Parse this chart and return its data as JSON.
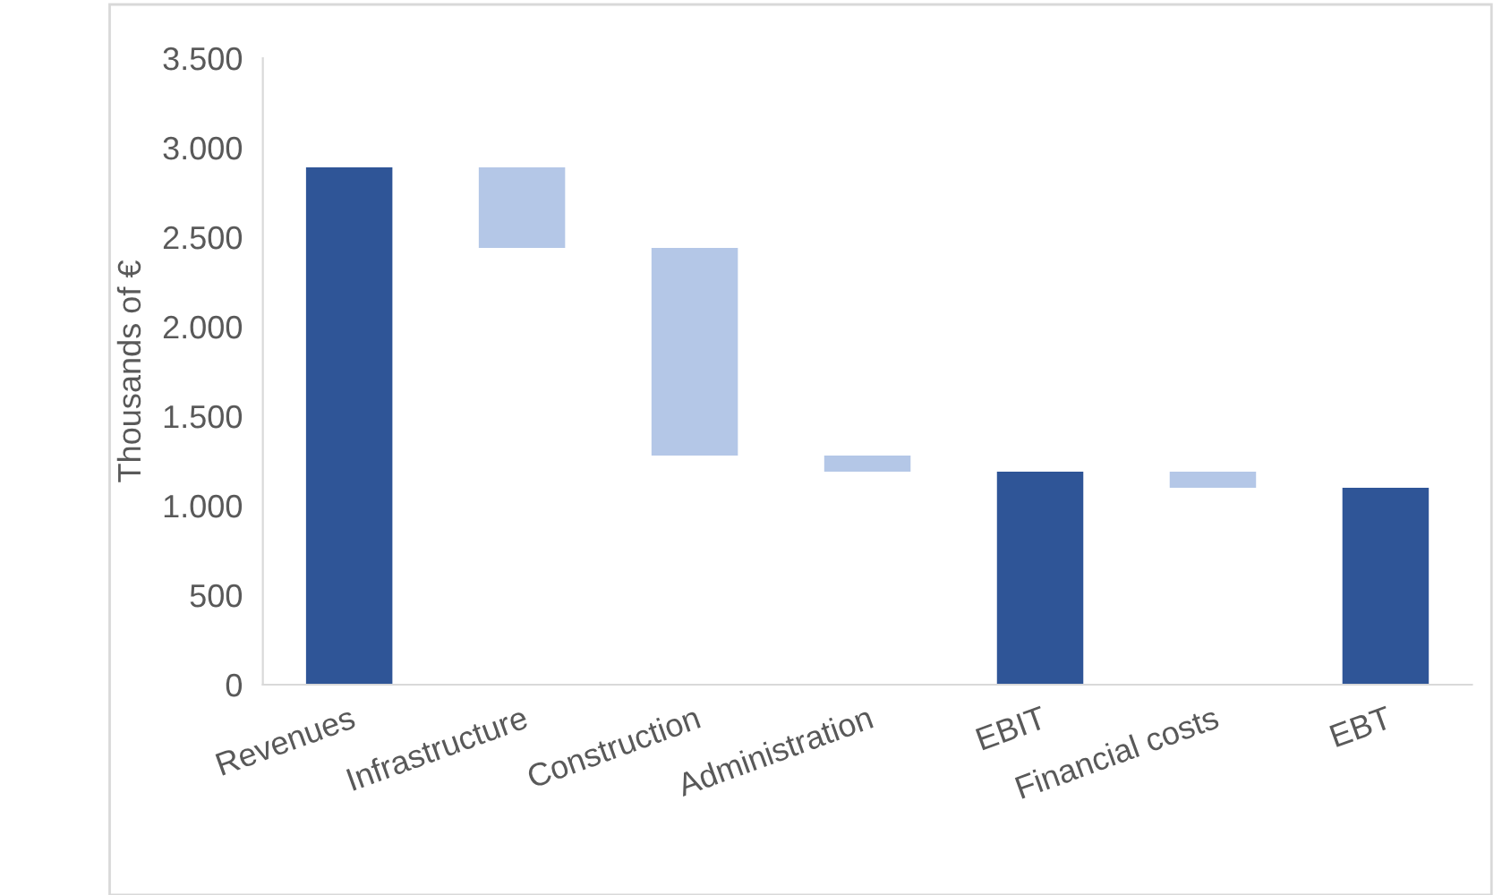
{
  "chart_data": {
    "type": "bar",
    "ylabel": "Thousands of €",
    "categories": [
      "Revenues",
      "Infrastructure",
      "Construction",
      "Administration",
      "EBIT",
      "Financial costs",
      "EBT"
    ],
    "values": [
      2890,
      450,
      1160,
      90,
      1190,
      90,
      1100
    ],
    "base": [
      0,
      2440,
      1280,
      1190,
      0,
      1100,
      0
    ],
    "colors": [
      "#2f5597",
      "#b4c7e7",
      "#b4c7e7",
      "#b4c7e7",
      "#2f5597",
      "#b4c7e7",
      "#2f5597"
    ],
    "ylim": [
      0,
      3500
    ],
    "yticks": [
      {
        "value": 0,
        "label": "0"
      },
      {
        "value": 500,
        "label": "500"
      },
      {
        "value": 1000,
        "label": "1.000"
      },
      {
        "value": 1500,
        "label": "1.500"
      },
      {
        "value": 2000,
        "label": "2.000"
      },
      {
        "value": 2500,
        "label": "2.500"
      },
      {
        "value": 3000,
        "label": "3.000"
      },
      {
        "value": 3500,
        "label": "3.500"
      }
    ],
    "grid": false,
    "legend": false
  }
}
